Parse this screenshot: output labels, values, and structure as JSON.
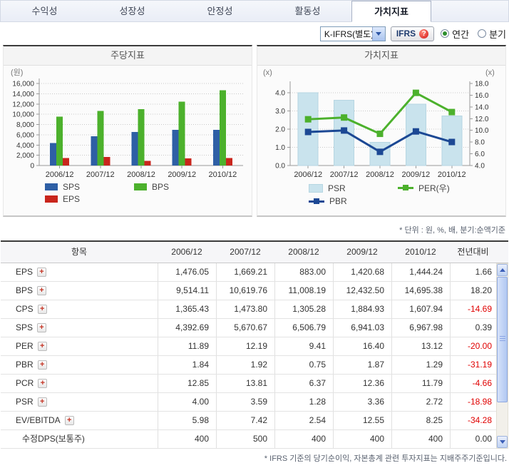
{
  "tabs": {
    "items": [
      {
        "label": "수익성",
        "active": false
      },
      {
        "label": "성장성",
        "active": false
      },
      {
        "label": "안정성",
        "active": false
      },
      {
        "label": "활동성",
        "active": false
      },
      {
        "label": "가치지표",
        "active": true
      }
    ]
  },
  "controls": {
    "dropdown_value": "K-IFRS(별도)",
    "ifrs_label": "IFRS",
    "radio_annual": "연간",
    "radio_quarter": "분기",
    "annual_checked": true
  },
  "chart_data": [
    {
      "type": "bar",
      "title": "주당지표",
      "unit_label": "(원)",
      "categories": [
        "2006/12",
        "2007/12",
        "2008/12",
        "2009/12",
        "2010/12"
      ],
      "series": [
        {
          "name": "SPS",
          "color": "#2e5fa5",
          "values": [
            4392.69,
            5670.67,
            6506.79,
            6941.03,
            6967.98
          ]
        },
        {
          "name": "BPS",
          "color": "#4cb12c",
          "values": [
            9514.11,
            10619.76,
            11008.19,
            12432.5,
            14695.38
          ]
        },
        {
          "name": "EPS",
          "color": "#c9251c",
          "values": [
            1476.05,
            1669.21,
            883.0,
            1420.68,
            1444.24
          ]
        }
      ],
      "ylim": [
        0,
        16000
      ],
      "ystep": 2000,
      "grid": "dotted",
      "legend_position": "bottom"
    },
    {
      "type": "combo",
      "title": "가치지표",
      "unit_label_left": "(x)",
      "unit_label_right": "(x)",
      "categories": [
        "2006/12",
        "2007/12",
        "2008/12",
        "2009/12",
        "2010/12"
      ],
      "series": [
        {
          "name": "PSR",
          "kind": "bar",
          "axis": "left",
          "color": "#c9e3ed",
          "border": "#b6d6e2",
          "values": [
            4.0,
            3.59,
            1.28,
            3.36,
            2.72
          ]
        },
        {
          "name": "PER(우)",
          "kind": "line",
          "axis": "right",
          "color": "#4cb12c",
          "values": [
            11.89,
            12.19,
            9.41,
            16.4,
            13.12
          ]
        },
        {
          "name": "PBR",
          "kind": "line",
          "axis": "left",
          "color": "#1c4894",
          "values": [
            1.84,
            1.92,
            0.75,
            1.87,
            1.29
          ]
        }
      ],
      "axis_left": {
        "min": 0,
        "max": 4.5,
        "ticks": [
          0,
          1,
          2,
          3,
          4
        ]
      },
      "axis_right": {
        "min": 4,
        "max": 18,
        "step": 2
      },
      "grid": "dotted",
      "legend_position": "bottom"
    }
  ],
  "unit_note": "* 단위 : 원, %, 배, 분기:순액기준",
  "table": {
    "headers": [
      "항목",
      "2006/12",
      "2007/12",
      "2008/12",
      "2009/12",
      "2010/12",
      "전년대비"
    ],
    "rows": [
      {
        "label": "EPS",
        "plus": true,
        "values": [
          "1,476.05",
          "1,669.21",
          "883.00",
          "1,420.68",
          "1,444.24"
        ],
        "yoy": "1.66"
      },
      {
        "label": "BPS",
        "plus": true,
        "values": [
          "9,514.11",
          "10,619.76",
          "11,008.19",
          "12,432.50",
          "14,695.38"
        ],
        "yoy": "18.20"
      },
      {
        "label": "CPS",
        "plus": true,
        "values": [
          "1,365.43",
          "1,473.80",
          "1,305.28",
          "1,884.93",
          "1,607.94"
        ],
        "yoy": "-14.69"
      },
      {
        "label": "SPS",
        "plus": true,
        "values": [
          "4,392.69",
          "5,670.67",
          "6,506.79",
          "6,941.03",
          "6,967.98"
        ],
        "yoy": "0.39"
      },
      {
        "label": "PER",
        "plus": true,
        "values": [
          "11.89",
          "12.19",
          "9.41",
          "16.40",
          "13.12"
        ],
        "yoy": "-20.00"
      },
      {
        "label": "PBR",
        "plus": true,
        "values": [
          "1.84",
          "1.92",
          "0.75",
          "1.87",
          "1.29"
        ],
        "yoy": "-31.19"
      },
      {
        "label": "PCR",
        "plus": true,
        "values": [
          "12.85",
          "13.81",
          "6.37",
          "12.36",
          "11.79"
        ],
        "yoy": "-4.66"
      },
      {
        "label": "PSR",
        "plus": true,
        "values": [
          "4.00",
          "3.59",
          "1.28",
          "3.36",
          "2.72"
        ],
        "yoy": "-18.98"
      },
      {
        "label": "EV/EBITDA",
        "plus": true,
        "values": [
          "5.98",
          "7.42",
          "2.54",
          "12.55",
          "8.25"
        ],
        "yoy": "-34.28"
      },
      {
        "label": "수정DPS(보통주)",
        "plus": false,
        "values": [
          "400",
          "500",
          "400",
          "400",
          "400"
        ],
        "yoy": "0.00"
      }
    ]
  },
  "footnote": "* IFRS 기준의 당기순이익, 자본총계 관련 투자지표는 지배주주기준입니다."
}
